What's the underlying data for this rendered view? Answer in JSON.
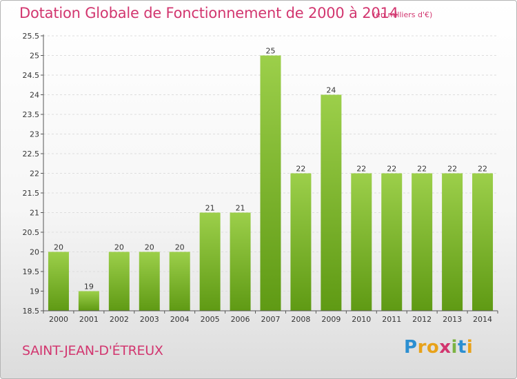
{
  "header": {
    "title": "Dotation Globale de Fonctionnement de 2000 à 2014",
    "subtitle": "(en milliers d'€)"
  },
  "footer": {
    "place_name": "SAINT-JEAN-D'ÉTREUX",
    "logo_text": "Proxiti"
  },
  "colors": {
    "title": "#d2366f",
    "bar_light": "#9ccf4a",
    "bar_dark": "#5f9a14",
    "axis": "#555555",
    "grid": "#dddddd"
  },
  "chart_data": {
    "type": "bar",
    "title": "Dotation Globale de Fonctionnement de 2000 à 2014",
    "subtitle": "(en milliers d'€)",
    "categories": [
      "2000",
      "2001",
      "2002",
      "2003",
      "2004",
      "2005",
      "2006",
      "2007",
      "2008",
      "2009",
      "2010",
      "2011",
      "2012",
      "2013",
      "2014"
    ],
    "values": [
      20,
      19,
      20,
      20,
      20,
      21,
      21,
      25,
      22,
      24,
      22,
      22,
      22,
      22,
      22
    ],
    "value_labels": [
      "20",
      "19",
      "20",
      "20",
      "20",
      "21",
      "21",
      "25",
      "22",
      "24",
      "22",
      "22",
      "22",
      "22",
      "22"
    ],
    "ylim": [
      18.5,
      25.5
    ],
    "yticks": [
      "18.5",
      "19",
      "19.5",
      "20",
      "20.5",
      "21",
      "21.5",
      "22",
      "22.5",
      "23",
      "23.5",
      "24",
      "24.5",
      "25",
      "25.5"
    ],
    "xlabel": "",
    "ylabel": "",
    "grid": true
  }
}
